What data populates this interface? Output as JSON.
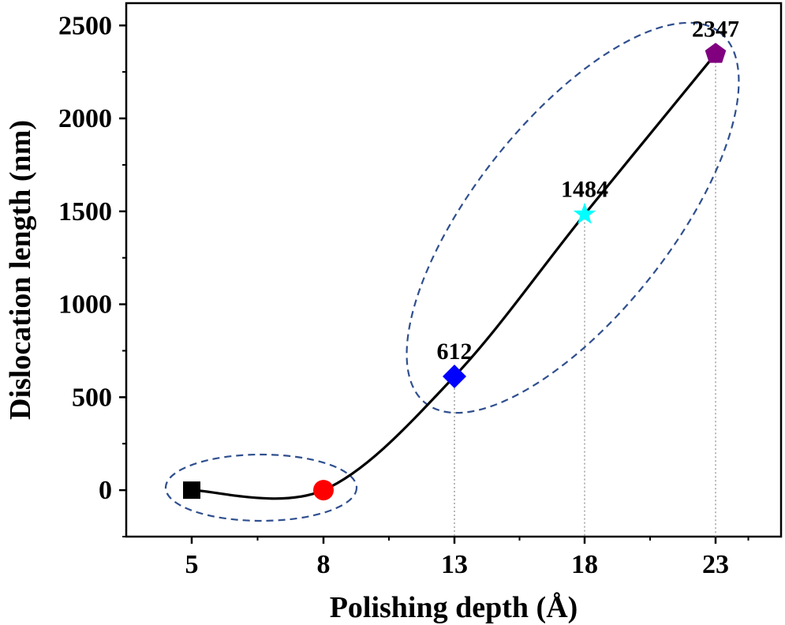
{
  "chart_data": {
    "type": "line",
    "xlabel": "Polishing depth (Å)",
    "ylabel": "Dislocation length (nm)",
    "categories": [
      "5",
      "8",
      "13",
      "18",
      "23"
    ],
    "y_ticks": [
      "0",
      "500",
      "1000",
      "1500",
      "2000",
      "2500"
    ],
    "ylim": [
      -250,
      2620
    ],
    "grid": false,
    "points": [
      {
        "x": "5",
        "y": 0,
        "marker": "square",
        "color": "#000000",
        "label": ""
      },
      {
        "x": "8",
        "y": 0,
        "marker": "circle",
        "color": "#ff0000",
        "label": ""
      },
      {
        "x": "13",
        "y": 612,
        "marker": "diamond",
        "color": "#0000ff",
        "label": "612"
      },
      {
        "x": "18",
        "y": 1484,
        "marker": "star",
        "color": "#00ffff",
        "label": "1484"
      },
      {
        "x": "23",
        "y": 2347,
        "marker": "pentagon",
        "color": "#800080",
        "label": "2347"
      }
    ],
    "line_color": "#000000",
    "ellipse_color": "#2f4f8f"
  }
}
